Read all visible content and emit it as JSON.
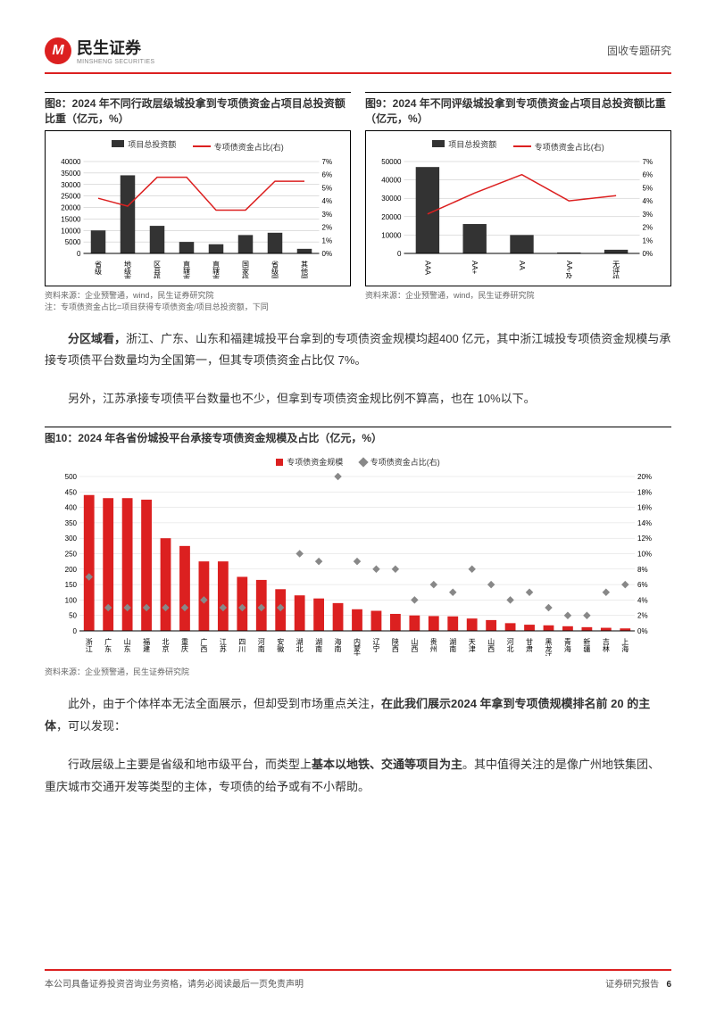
{
  "header": {
    "brand_cn": "民生证券",
    "brand_en": "MINSHENG SECURITIES",
    "doctype": "固收专题研究"
  },
  "chart8": {
    "title": "图8：2024 年不同行政层级城投拿到专项债资金占项目总投资额比重（亿元，%）",
    "type": "bar+line",
    "legend_bar": "项目总投资额",
    "legend_line": "专项债资金占比(右)",
    "categories": [
      "省级",
      "地级市",
      "区县级",
      "直辖市",
      "直辖市区",
      "国家级园区",
      "省级园区",
      "其他园区"
    ],
    "bar_values": [
      10000,
      34000,
      12000,
      5000,
      4000,
      8000,
      9000,
      2000
    ],
    "line_values": [
      4.2,
      3.6,
      5.8,
      5.8,
      3.3,
      3.3,
      5.5,
      5.5
    ],
    "y1_max": 40000,
    "y1_step": 5000,
    "y2_max": 7,
    "y2_step": 1,
    "bar_color": "#333333",
    "line_color": "#dc2020",
    "axis_fontsize": 8,
    "grid_color": "#bfbfbf"
  },
  "chart9": {
    "title": "图9：2024 年不同评级城投拿到专项债资金占项目总投资额比重（亿元，%）",
    "type": "bar+line",
    "legend_bar": "项目总投资额",
    "legend_line": "专项债资金占比(右)",
    "categories": [
      "AAA",
      "AA+",
      "AA",
      "AA-及以下",
      "无评级"
    ],
    "bar_values": [
      47000,
      16000,
      10000,
      500,
      2000
    ],
    "line_values": [
      3.0,
      4.6,
      6.0,
      4.0,
      4.4
    ],
    "y1_max": 50000,
    "y1_step": 10000,
    "y2_max": 7,
    "y2_step": 1,
    "bar_color": "#333333",
    "line_color": "#dc2020",
    "axis_fontsize": 8,
    "grid_color": "#bfbfbf"
  },
  "source89": "资料来源：企业预警通，wind，民生证券研究院",
  "note8": "注：专项债资金占比=项目获得专项债资金/项目总投资额，下同",
  "para1": {
    "lead": "分区域看，",
    "body": "浙江、广东、山东和福建城投平台拿到的专项债资金规模均超400 亿元，其中浙江城投专项债资金规模与承接专项债平台数量均为全国第一，但其专项债资金占比仅 7%。"
  },
  "para2": "另外，江苏承接专项债平台数量也不少，但拿到专项债资金规比例不算高，也在 10%以下。",
  "chart10": {
    "title": "图10：2024 年各省份城投平台承接专项债资金规模及占比（亿元，%）",
    "type": "bar+scatter",
    "legend_bar": "专项债资金规模",
    "legend_scatter": "专项债资金占比(右)",
    "categories": [
      "浙江",
      "广东",
      "山东",
      "福建",
      "北京",
      "重庆",
      "广西",
      "江苏",
      "四川",
      "河南",
      "安徽",
      "湖北",
      "湖南",
      "海南",
      "内蒙古",
      "辽宁",
      "陕西",
      "山西",
      "贵州",
      "湖南",
      "天津",
      "山西",
      "河北",
      "甘肃",
      "黑龙江",
      "青海",
      "新疆",
      "吉林",
      "上海"
    ],
    "bar_values": [
      440,
      430,
      430,
      425,
      300,
      275,
      225,
      225,
      175,
      165,
      135,
      115,
      105,
      90,
      70,
      65,
      55,
      50,
      48,
      47,
      40,
      35,
      25,
      20,
      18,
      15,
      12,
      10,
      8
    ],
    "scatter_values": [
      7,
      3,
      3,
      3,
      3,
      3,
      4,
      3,
      3,
      3,
      3,
      10,
      9,
      20,
      9,
      8,
      8,
      4,
      6,
      5,
      8,
      6,
      4,
      5,
      3,
      2,
      2,
      5,
      6
    ],
    "y1_max": 500,
    "y1_step": 50,
    "y2_max": 20,
    "y2_step": 2,
    "bar_color": "#dc2020",
    "scatter_color": "#888888",
    "axis_fontsize": 8,
    "grid_color": "#d9d9d9"
  },
  "source10": "资料来源：企业预警通，民生证券研究院",
  "para3": {
    "a": "此外，由于个体样本无法全面展示，但却受到市场重点关注，",
    "b": "在此我们展示2024 年拿到专项债规模排名前 20 的主体",
    "c": "，可以发现："
  },
  "para4": {
    "a": "行政层级上主要是省级和地市级平台，而类型上",
    "b": "基本以地铁、交通等项目为主",
    "c": "。其中值得关注的是像广州地铁集团、重庆城市交通开发等类型的主体，专项债的给予或有不小帮助。"
  },
  "footer": {
    "left": "本公司具备证券投资咨询业务资格，请务必阅读最后一页免责声明",
    "right": "证券研究报告",
    "page": "6"
  }
}
